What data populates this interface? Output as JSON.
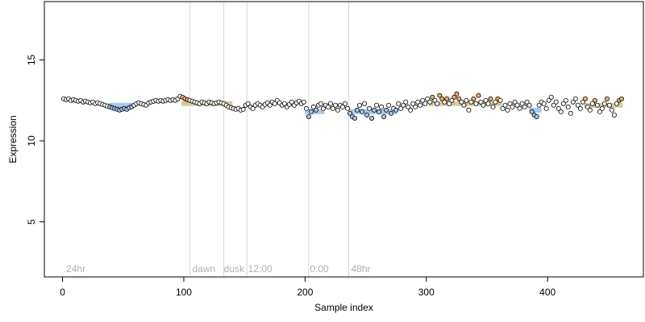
{
  "chart_data": {
    "type": "scatter",
    "title": "",
    "xlabel": "Sample index",
    "ylabel": "Expression",
    "xlim": [
      -15,
      479
    ],
    "ylim": [
      1.6,
      18.6
    ],
    "x_ticks": [
      0,
      100,
      200,
      300,
      400
    ],
    "y_ticks": [
      5,
      10,
      15
    ],
    "grid": false,
    "legend": "none",
    "region_boundaries": [
      105,
      133,
      152,
      203,
      236
    ],
    "region_labels": [
      {
        "x": 3,
        "text": "24hr"
      },
      {
        "x": 107,
        "text": "dawn"
      },
      {
        "x": 133,
        "text": "dusk"
      },
      {
        "x": 153,
        "text": "12:00"
      },
      {
        "x": 204,
        "text": "0:00"
      },
      {
        "x": 238,
        "text": "48hr"
      }
    ],
    "reference_bands": [
      {
        "x_start": 38,
        "x_end": 58,
        "y": 12.2,
        "color": "#a8c8ec"
      },
      {
        "x_start": 98,
        "x_end": 140,
        "y": 12.3,
        "color": "#d8c89a"
      },
      {
        "x_start": 200,
        "x_end": 216,
        "y": 11.8,
        "color": "#a8c8ec"
      },
      {
        "x_start": 236,
        "x_end": 276,
        "y": 11.8,
        "color": "#a8c8ec"
      },
      {
        "x_start": 302,
        "x_end": 362,
        "y": 12.3,
        "color": "#d8c89a"
      },
      {
        "x_start": 385,
        "x_end": 395,
        "y": 11.9,
        "color": "#a8c8ec"
      },
      {
        "x_start": 430,
        "x_end": 462,
        "y": 12.2,
        "color": "#d8c89a"
      }
    ],
    "colors": {
      "point_edge": "#000000",
      "fill_blue": "#a8c8ec",
      "fill_orange": "#f0b070",
      "fill_default": "#ffffff",
      "region_line": "#d8d8d8"
    },
    "series": [
      {
        "points_count": 460,
        "points": [
          [
            1,
            12.6
          ],
          [
            3,
            12.55
          ],
          [
            5,
            12.6
          ],
          [
            7,
            12.5
          ],
          [
            9,
            12.55
          ],
          [
            11,
            12.5
          ],
          [
            13,
            12.45
          ],
          [
            15,
            12.5
          ],
          [
            17,
            12.4
          ],
          [
            19,
            12.45
          ],
          [
            21,
            12.4
          ],
          [
            23,
            12.35
          ],
          [
            25,
            12.4
          ],
          [
            27,
            12.3
          ],
          [
            29,
            12.35
          ],
          [
            31,
            12.3
          ],
          [
            33,
            12.25
          ],
          [
            35,
            12.2
          ],
          [
            37,
            12.15
          ],
          [
            39,
            12.1
          ],
          [
            41,
            12.05
          ],
          [
            43,
            12.0
          ],
          [
            45,
            11.95
          ],
          [
            47,
            11.9
          ],
          [
            49,
            11.95
          ],
          [
            51,
            12.0
          ],
          [
            53,
            11.95
          ],
          [
            55,
            12.05
          ],
          [
            57,
            12.1
          ],
          [
            59,
            12.2
          ],
          [
            61,
            12.3
          ],
          [
            63,
            12.35
          ],
          [
            65,
            12.3
          ],
          [
            67,
            12.25
          ],
          [
            69,
            12.2
          ],
          [
            71,
            12.35
          ],
          [
            73,
            12.4
          ],
          [
            75,
            12.45
          ],
          [
            77,
            12.5
          ],
          [
            79,
            12.45
          ],
          [
            81,
            12.5
          ],
          [
            83,
            12.45
          ],
          [
            85,
            12.5
          ],
          [
            87,
            12.55
          ],
          [
            89,
            12.5
          ],
          [
            91,
            12.55
          ],
          [
            93,
            12.5
          ],
          [
            95,
            12.6
          ],
          [
            97,
            12.75
          ],
          [
            99,
            12.7
          ],
          [
            101,
            12.6
          ],
          [
            103,
            12.55
          ],
          [
            105,
            12.5
          ],
          [
            107,
            12.45
          ],
          [
            109,
            12.4
          ],
          [
            111,
            12.35
          ],
          [
            113,
            12.3
          ],
          [
            115,
            12.4
          ],
          [
            117,
            12.35
          ],
          [
            119,
            12.3
          ],
          [
            121,
            12.4
          ],
          [
            123,
            12.35
          ],
          [
            125,
            12.3
          ],
          [
            127,
            12.35
          ],
          [
            129,
            12.4
          ],
          [
            131,
            12.35
          ],
          [
            133,
            12.3
          ],
          [
            135,
            12.2
          ],
          [
            137,
            12.1
          ],
          [
            139,
            12.05
          ],
          [
            141,
            12.0
          ],
          [
            143,
            11.95
          ],
          [
            145,
            12.0
          ],
          [
            147,
            11.9
          ],
          [
            149,
            11.95
          ],
          [
            151,
            12.2
          ],
          [
            153,
            12.3
          ],
          [
            155,
            12.1
          ],
          [
            157,
            12.0
          ],
          [
            159,
            12.2
          ],
          [
            161,
            12.3
          ],
          [
            163,
            12.2
          ],
          [
            165,
            12.1
          ],
          [
            167,
            12.25
          ],
          [
            169,
            12.35
          ],
          [
            171,
            12.2
          ],
          [
            173,
            12.4
          ],
          [
            175,
            12.3
          ],
          [
            177,
            12.5
          ],
          [
            179,
            12.35
          ],
          [
            181,
            12.2
          ],
          [
            183,
            12.3
          ],
          [
            185,
            12.1
          ],
          [
            187,
            12.25
          ],
          [
            189,
            12.4
          ],
          [
            191,
            12.2
          ],
          [
            193,
            12.35
          ],
          [
            195,
            12.45
          ],
          [
            197,
            12.3
          ],
          [
            199,
            12.4
          ],
          [
            201,
            12.0
          ],
          [
            203,
            11.5
          ],
          [
            205,
            11.8
          ],
          [
            207,
            12.1
          ],
          [
            209,
            11.9
          ],
          [
            211,
            12.2
          ],
          [
            213,
            12.3
          ],
          [
            215,
            12.0
          ],
          [
            217,
            12.2
          ],
          [
            219,
            12.1
          ],
          [
            221,
            12.3
          ],
          [
            223,
            12.0
          ],
          [
            225,
            12.2
          ],
          [
            227,
            11.9
          ],
          [
            229,
            12.2
          ],
          [
            231,
            12.1
          ],
          [
            233,
            12.3
          ],
          [
            235,
            12.0
          ],
          [
            237,
            11.7
          ],
          [
            239,
            11.5
          ],
          [
            241,
            11.4
          ],
          [
            243,
            11.9
          ],
          [
            245,
            12.2
          ],
          [
            247,
            11.8
          ],
          [
            249,
            12.3
          ],
          [
            251,
            11.6
          ],
          [
            253,
            12.0
          ],
          [
            255,
            11.4
          ],
          [
            257,
            11.9
          ],
          [
            259,
            12.2
          ],
          [
            261,
            11.8
          ],
          [
            263,
            12.1
          ],
          [
            265,
            11.5
          ],
          [
            267,
            11.9
          ],
          [
            269,
            12.2
          ],
          [
            271,
            11.7
          ],
          [
            273,
            12.0
          ],
          [
            275,
            11.9
          ],
          [
            277,
            12.3
          ],
          [
            279,
            12.0
          ],
          [
            281,
            12.2
          ],
          [
            283,
            12.4
          ],
          [
            285,
            12.1
          ],
          [
            287,
            11.9
          ],
          [
            289,
            12.3
          ],
          [
            291,
            12.1
          ],
          [
            293,
            12.4
          ],
          [
            295,
            12.2
          ],
          [
            297,
            12.5
          ],
          [
            299,
            12.3
          ],
          [
            301,
            12.6
          ],
          [
            303,
            12.4
          ],
          [
            305,
            12.7
          ],
          [
            307,
            12.5
          ],
          [
            309,
            12.3
          ],
          [
            311,
            12.8
          ],
          [
            313,
            12.6
          ],
          [
            315,
            12.4
          ],
          [
            317,
            12.6
          ],
          [
            319,
            12.3
          ],
          [
            321,
            12.5
          ],
          [
            323,
            12.7
          ],
          [
            325,
            12.9
          ],
          [
            327,
            12.6
          ],
          [
            329,
            12.4
          ],
          [
            331,
            12.2
          ],
          [
            333,
            12.5
          ],
          [
            335,
            11.9
          ],
          [
            337,
            12.4
          ],
          [
            339,
            12.6
          ],
          [
            341,
            12.3
          ],
          [
            343,
            12.8
          ],
          [
            345,
            12.4
          ],
          [
            347,
            12.2
          ],
          [
            349,
            12.5
          ],
          [
            351,
            12.3
          ],
          [
            353,
            12.6
          ],
          [
            355,
            12.1
          ],
          [
            357,
            12.4
          ],
          [
            359,
            12.6
          ],
          [
            361,
            12.5
          ],
          [
            363,
            12.0
          ],
          [
            365,
            12.2
          ],
          [
            367,
            11.9
          ],
          [
            369,
            12.3
          ],
          [
            371,
            12.1
          ],
          [
            373,
            12.4
          ],
          [
            375,
            12.2
          ],
          [
            377,
            12.0
          ],
          [
            379,
            12.3
          ],
          [
            381,
            12.1
          ],
          [
            383,
            12.4
          ],
          [
            385,
            12.2
          ],
          [
            387,
            11.8
          ],
          [
            389,
            11.6
          ],
          [
            391,
            11.5
          ],
          [
            393,
            12.2
          ],
          [
            395,
            12.4
          ],
          [
            397,
            12.3
          ],
          [
            399,
            12.0
          ],
          [
            401,
            12.5
          ],
          [
            403,
            12.7
          ],
          [
            405,
            12.2
          ],
          [
            407,
            12.4
          ],
          [
            409,
            12.0
          ],
          [
            411,
            11.8
          ],
          [
            413,
            12.3
          ],
          [
            415,
            12.5
          ],
          [
            417,
            12.1
          ],
          [
            419,
            11.7
          ],
          [
            421,
            12.4
          ],
          [
            423,
            12.6
          ],
          [
            425,
            12.2
          ],
          [
            427,
            12.0
          ],
          [
            429,
            12.4
          ],
          [
            431,
            12.6
          ],
          [
            433,
            12.1
          ],
          [
            435,
            11.9
          ],
          [
            437,
            12.3
          ],
          [
            439,
            12.5
          ],
          [
            441,
            12.2
          ],
          [
            443,
            11.8
          ],
          [
            445,
            12.0
          ],
          [
            447,
            12.3
          ],
          [
            449,
            12.6
          ],
          [
            451,
            12.2
          ],
          [
            453,
            11.9
          ],
          [
            455,
            11.6
          ],
          [
            457,
            12.3
          ],
          [
            459,
            12.5
          ],
          [
            461,
            12.6
          ]
        ]
      }
    ]
  }
}
